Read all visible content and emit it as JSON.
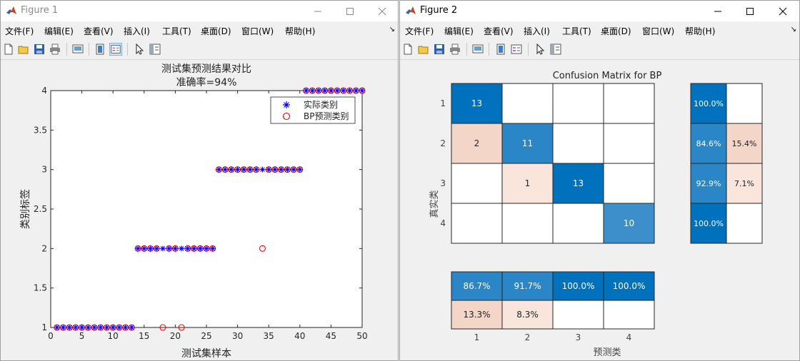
{
  "figure1": {
    "title": "Figure 1",
    "menu": [
      "文件(F)",
      "编辑(E)",
      "查看(V)",
      "插入(I)",
      "工具(T)",
      "桌面(D)",
      "窗口(W)",
      "帮助(H)"
    ],
    "chart_data": {
      "type": "scatter",
      "title": "测试集预测结果对比",
      "subtitle": "准确率=94%",
      "xlabel": "测试集样本",
      "ylabel": "类别标签",
      "xlim": [
        0,
        50
      ],
      "ylim": [
        1,
        4
      ],
      "xticks": [
        "0",
        "5",
        "10",
        "15",
        "20",
        "25",
        "30",
        "35",
        "40",
        "45",
        "50"
      ],
      "yticks": [
        "1",
        "1.5",
        "2",
        "2.5",
        "3",
        "3.5",
        "4"
      ],
      "legend": {
        "position": "top-right",
        "entries": [
          "实际类别",
          "BP预测类别"
        ]
      },
      "series": [
        {
          "name": "实际类别",
          "marker": "asterisk",
          "color": "#0000ff",
          "x": [
            1,
            2,
            3,
            4,
            5,
            6,
            7,
            8,
            9,
            10,
            11,
            12,
            13,
            14,
            15,
            16,
            17,
            18,
            19,
            20,
            21,
            22,
            23,
            24,
            25,
            26,
            27,
            28,
            29,
            30,
            31,
            32,
            33,
            34,
            35,
            36,
            37,
            38,
            39,
            40,
            41,
            42,
            43,
            44,
            45,
            46,
            47,
            48,
            49,
            50
          ],
          "y": [
            1,
            1,
            1,
            1,
            1,
            1,
            1,
            1,
            1,
            1,
            1,
            1,
            1,
            2,
            2,
            2,
            2,
            2,
            2,
            2,
            2,
            2,
            2,
            2,
            2,
            2,
            3,
            3,
            3,
            3,
            3,
            3,
            3,
            3,
            3,
            3,
            3,
            3,
            3,
            3,
            4,
            4,
            4,
            4,
            4,
            4,
            4,
            4,
            4,
            4
          ]
        },
        {
          "name": "BP预测类别",
          "marker": "circle",
          "color": "#ff0000",
          "x": [
            1,
            2,
            3,
            4,
            5,
            6,
            7,
            8,
            9,
            10,
            11,
            12,
            13,
            14,
            15,
            16,
            17,
            18,
            19,
            20,
            21,
            22,
            23,
            24,
            25,
            26,
            27,
            28,
            29,
            30,
            31,
            32,
            33,
            34,
            35,
            36,
            37,
            38,
            39,
            40,
            41,
            42,
            43,
            44,
            45,
            46,
            47,
            48,
            49,
            50
          ],
          "y": [
            1,
            1,
            1,
            1,
            1,
            1,
            1,
            1,
            1,
            1,
            1,
            1,
            1,
            2,
            2,
            2,
            2,
            1,
            2,
            2,
            1,
            2,
            2,
            2,
            2,
            2,
            3,
            3,
            3,
            3,
            3,
            3,
            3,
            2,
            3,
            3,
            3,
            3,
            3,
            3,
            4,
            4,
            4,
            4,
            4,
            4,
            4,
            4,
            4,
            4
          ]
        }
      ]
    }
  },
  "figure2": {
    "title": "Figure 2",
    "menu": [
      "文件(F)",
      "编辑(E)",
      "查看(V)",
      "插入(I)",
      "工具(T)",
      "桌面(D)",
      "窗口(W)",
      "帮助(H)"
    ],
    "chart_data": {
      "type": "heatmap",
      "title": "Confusion Matrix for BP",
      "xlabel": "预测类",
      "ylabel": "真实类",
      "xticks": [
        "1",
        "2",
        "3",
        "4"
      ],
      "yticks": [
        "1",
        "2",
        "3",
        "4"
      ],
      "matrix": [
        [
          13,
          0,
          0,
          0
        ],
        [
          2,
          11,
          0,
          0
        ],
        [
          0,
          1,
          13,
          0
        ],
        [
          0,
          0,
          0,
          10
        ]
      ],
      "row_summary": [
        [
          "100.0%",
          ""
        ],
        [
          "84.6%",
          "15.4%"
        ],
        [
          "92.9%",
          "7.1%"
        ],
        [
          "100.0%",
          ""
        ]
      ],
      "column_summary": [
        [
          "86.7%",
          "91.7%",
          "100.0%",
          "100.0%"
        ],
        [
          "13.3%",
          "8.3%",
          "",
          ""
        ]
      ],
      "colors": {
        "diag_dark": "#0072bd",
        "diag_mid": "#2b86c8",
        "diag_light": "#3d8fcc",
        "error_light": "#f9e5dc",
        "error_mid": "#f4d6c8",
        "empty": "#ffffff"
      }
    }
  }
}
